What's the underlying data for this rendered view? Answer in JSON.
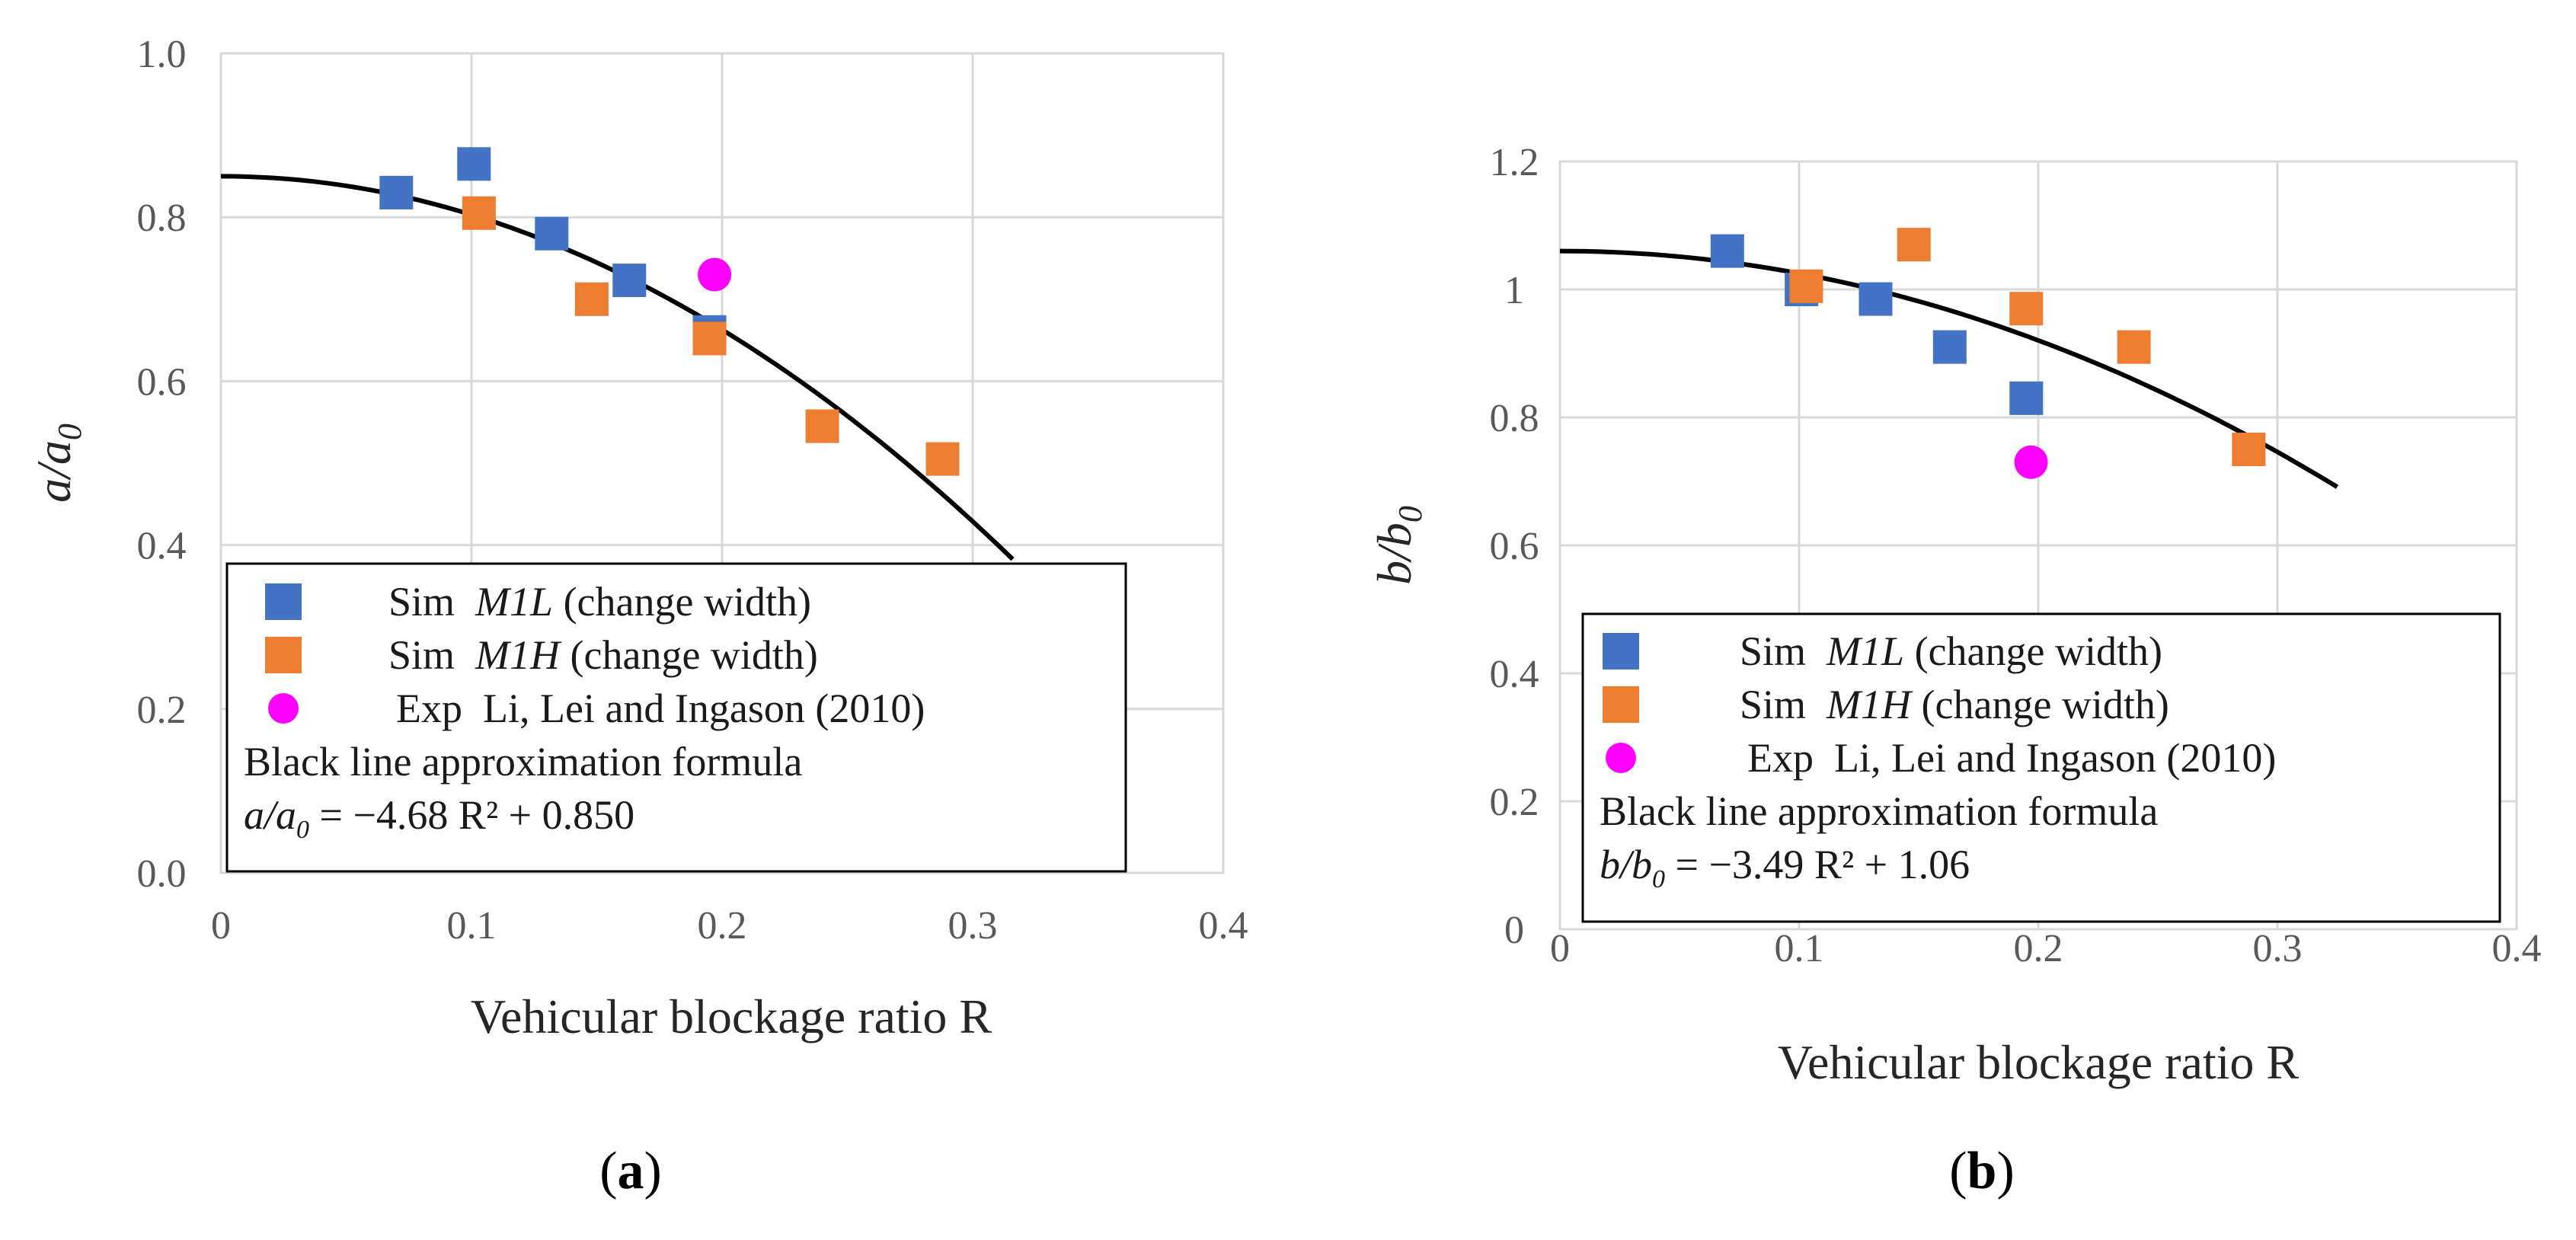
{
  "colors": {
    "sim_m1l": "#4472C4",
    "sim_m1h": "#ED7D31",
    "exp": "#FF00FF",
    "fit": "#000000",
    "grid": "#d9d9d9",
    "tick_text": "#595959"
  },
  "chart_data": [
    {
      "type": "scatter",
      "panel_label": "(a)",
      "panel_letter": "a",
      "xlabel": "Vehicular blockage ratio R",
      "ylabel": {
        "main": "a/a",
        "sub": "0"
      },
      "xlim": [
        0,
        0.4
      ],
      "ylim": [
        0,
        1.0
      ],
      "x_ticks": [
        "0",
        "0.1",
        "0.2",
        "0.3",
        "0.4"
      ],
      "y_ticks": [
        "0.0",
        "0.2",
        "0.4",
        "0.6",
        "0.8",
        "1.0"
      ],
      "grid": true,
      "series": [
        {
          "name": "M1L",
          "legend_prefix": "Sim",
          "legend_suffix": "(change width)",
          "marker": "square",
          "x": [
            0.07,
            0.101,
            0.132,
            0.163,
            0.195
          ],
          "y": [
            0.83,
            0.865,
            0.78,
            0.723,
            0.66
          ]
        },
        {
          "name": "M1H",
          "legend_prefix": "Sim",
          "legend_suffix": "(change width)",
          "marker": "square",
          "x": [
            0.103,
            0.148,
            0.195,
            0.24,
            0.288
          ],
          "y": [
            0.805,
            0.7,
            0.652,
            0.545,
            0.505
          ]
        },
        {
          "name": "Li, Lei and Ingason (2010)",
          "legend_prefix": "Exp",
          "marker": "circle",
          "x": [
            0.197
          ],
          "y": [
            0.73
          ]
        }
      ],
      "fit": {
        "coef": -4.68,
        "intercept": 0.85,
        "x_range": [
          0,
          0.316
        ]
      },
      "legend": {
        "formula_title": "Black line approximation formula",
        "formula_var": "a/a",
        "formula_sub": "0",
        "formula_rest": " = −4.68 R² + 0.850"
      }
    },
    {
      "type": "scatter",
      "panel_label": "(b)",
      "panel_letter": "b",
      "xlabel": "Vehicular blockage ratio R",
      "ylabel": {
        "main": "b/b",
        "sub": "0"
      },
      "xlim": [
        0,
        0.4
      ],
      "ylim": [
        0,
        1.2
      ],
      "x_ticks": [
        "0",
        "0.1",
        "0.2",
        "0.3",
        "0.4"
      ],
      "y_ticks": [
        "0",
        "0.2",
        "0.4",
        "0.6",
        "0.8",
        "1",
        "1.2"
      ],
      "grid": true,
      "series": [
        {
          "name": "M1L",
          "legend_prefix": "Sim",
          "legend_suffix": "(change width)",
          "marker": "square",
          "x": [
            0.07,
            0.101,
            0.132,
            0.163,
            0.195
          ],
          "y": [
            1.06,
            1.0,
            0.985,
            0.91,
            0.83
          ]
        },
        {
          "name": "M1H",
          "legend_prefix": "Sim",
          "legend_suffix": "(change width)",
          "marker": "square",
          "x": [
            0.103,
            0.148,
            0.195,
            0.24,
            0.288
          ],
          "y": [
            1.005,
            1.07,
            0.97,
            0.91,
            0.75
          ]
        },
        {
          "name": "Li, Lei and Ingason (2010)",
          "legend_prefix": "Exp",
          "marker": "circle",
          "x": [
            0.197
          ],
          "y": [
            0.73
          ]
        }
      ],
      "fit": {
        "coef": -3.49,
        "intercept": 1.06,
        "x_range": [
          0,
          0.325
        ]
      },
      "legend": {
        "formula_title": "Black line approximation formula",
        "formula_var": "b/b",
        "formula_sub": "0",
        "formula_rest": " = −3.49 R² + 1.06"
      }
    }
  ]
}
